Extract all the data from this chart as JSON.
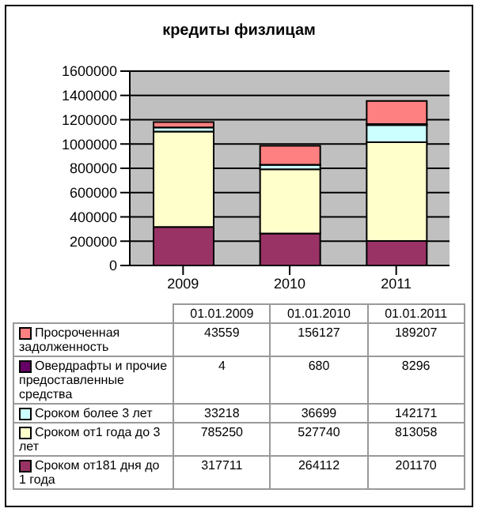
{
  "chart_data": {
    "type": "bar",
    "title": "кредиты физлицам",
    "categories": [
      "2009",
      "2010",
      "2011"
    ],
    "stacked": true,
    "series": [
      {
        "name": "Сроком от181 дня до 1 года",
        "color": "#993366",
        "values": [
          317711,
          264112,
          201170
        ]
      },
      {
        "name": "Сроком от1 года до 3 лет",
        "color": "#ffffcc",
        "values": [
          785250,
          527740,
          813058
        ]
      },
      {
        "name": "Сроком более 3 лет",
        "color": "#ccffff",
        "values": [
          33218,
          36699,
          142171
        ]
      },
      {
        "name": "Овердрафты и прочие предоставленные средства",
        "color": "#660066",
        "values": [
          4,
          680,
          8296
        ]
      },
      {
        "name": "Просроченная задолженность",
        "color": "#ff8080",
        "values": [
          43559,
          156127,
          189207
        ]
      }
    ],
    "ylim": [
      0,
      1600000
    ],
    "yticks": [
      0,
      200000,
      400000,
      600000,
      800000,
      1000000,
      1200000,
      1400000,
      1600000
    ],
    "grid": "y",
    "legend": "bottom",
    "data_labels": true,
    "annotations": [
      "01.01.2009",
      "01.01.2010",
      "01.01.2011"
    ]
  }
}
